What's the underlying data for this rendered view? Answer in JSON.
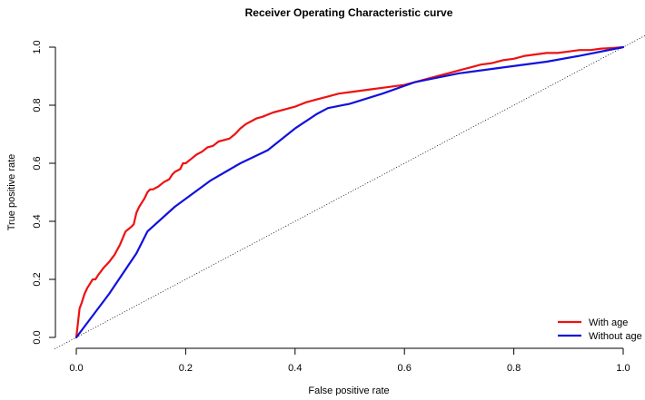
{
  "chart_data": {
    "type": "line",
    "title": "Receiver Operating Characteristic curve",
    "xlabel": "False positive rate",
    "ylabel": "True positive rate",
    "xlim": [
      0,
      1
    ],
    "ylim": [
      0,
      1
    ],
    "xticks": [
      "0.0",
      "0.2",
      "0.4",
      "0.6",
      "0.8",
      "1.0"
    ],
    "yticks": [
      "0.0",
      "0.2",
      "0.4",
      "0.6",
      "0.8",
      "1.0"
    ],
    "grid": false,
    "legend": {
      "placement": "bottom-right"
    },
    "reference_line": {
      "style": "dotted",
      "color": "#000000",
      "from": [
        0,
        0
      ],
      "to": [
        1,
        1
      ]
    },
    "series": [
      {
        "name": "With age",
        "color": "#ee1111",
        "x": [
          0,
          0.003,
          0.006,
          0.01,
          0.015,
          0.02,
          0.025,
          0.03,
          0.035,
          0.04,
          0.042,
          0.05,
          0.06,
          0.07,
          0.08,
          0.09,
          0.1,
          0.105,
          0.11,
          0.115,
          0.12,
          0.125,
          0.13,
          0.135,
          0.14,
          0.15,
          0.16,
          0.17,
          0.175,
          0.18,
          0.19,
          0.195,
          0.2,
          0.21,
          0.22,
          0.23,
          0.24,
          0.25,
          0.26,
          0.27,
          0.28,
          0.29,
          0.3,
          0.31,
          0.32,
          0.33,
          0.34,
          0.36,
          0.38,
          0.4,
          0.42,
          0.44,
          0.46,
          0.48,
          0.5,
          0.52,
          0.54,
          0.56,
          0.58,
          0.6,
          0.62,
          0.64,
          0.66,
          0.68,
          0.7,
          0.72,
          0.74,
          0.76,
          0.78,
          0.8,
          0.82,
          0.84,
          0.86,
          0.88,
          0.9,
          0.92,
          0.94,
          0.96,
          0.98,
          1.0
        ],
        "y": [
          0,
          0.05,
          0.1,
          0.12,
          0.15,
          0.17,
          0.185,
          0.2,
          0.2,
          0.215,
          0.22,
          0.24,
          0.26,
          0.285,
          0.32,
          0.365,
          0.38,
          0.39,
          0.43,
          0.45,
          0.465,
          0.48,
          0.5,
          0.51,
          0.51,
          0.52,
          0.535,
          0.545,
          0.56,
          0.57,
          0.58,
          0.6,
          0.6,
          0.615,
          0.63,
          0.64,
          0.655,
          0.66,
          0.675,
          0.68,
          0.685,
          0.7,
          0.72,
          0.735,
          0.745,
          0.755,
          0.76,
          0.775,
          0.785,
          0.795,
          0.81,
          0.82,
          0.83,
          0.84,
          0.845,
          0.85,
          0.855,
          0.86,
          0.865,
          0.87,
          0.88,
          0.89,
          0.9,
          0.91,
          0.92,
          0.93,
          0.94,
          0.945,
          0.955,
          0.96,
          0.97,
          0.975,
          0.98,
          0.98,
          0.985,
          0.99,
          0.99,
          0.995,
          0.997,
          1.0
        ]
      },
      {
        "name": "Without age",
        "color": "#1111dd",
        "x": [
          0,
          0.06,
          0.11,
          0.13,
          0.18,
          0.245,
          0.3,
          0.35,
          0.4,
          0.44,
          0.46,
          0.5,
          0.56,
          0.62,
          0.7,
          0.78,
          0.86,
          0.92,
          1.0
        ],
        "y": [
          0,
          0.15,
          0.29,
          0.365,
          0.45,
          0.54,
          0.6,
          0.645,
          0.72,
          0.77,
          0.79,
          0.805,
          0.84,
          0.88,
          0.91,
          0.93,
          0.95,
          0.97,
          1.0
        ]
      }
    ]
  }
}
